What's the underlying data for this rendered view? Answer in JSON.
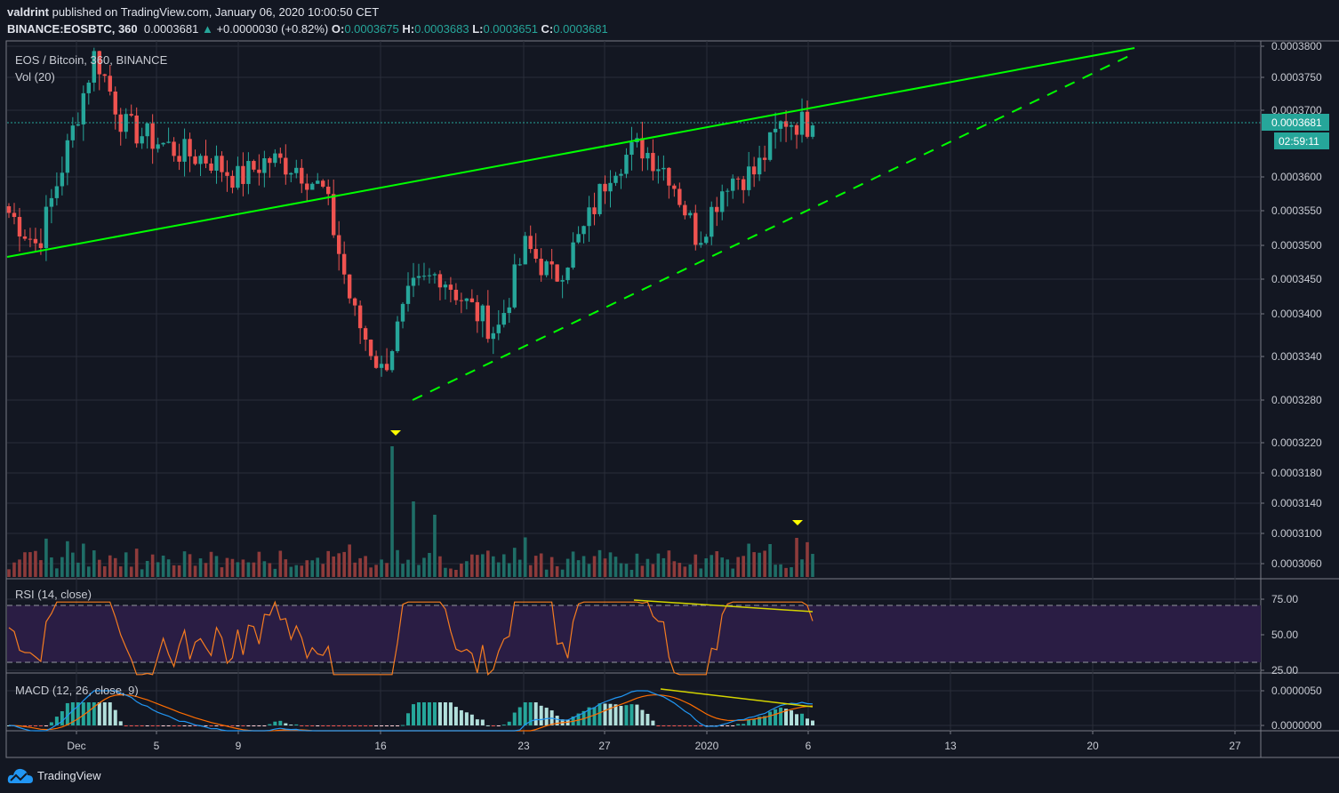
{
  "header": {
    "author": "valdrint",
    "published_text": "published on TradingView.com, January 06, 2020 10:00:50 CET",
    "symbol": "BINANCE:EOSBTC, 360",
    "last_price": "0.0003681",
    "change": "+0.0000030 (+0.82%)",
    "open_label": "O:",
    "open": "0.0003675",
    "high_label": "H:",
    "high": "0.0003683",
    "low_label": "L:",
    "low": "0.0003651",
    "close_label": "C:",
    "close": "0.0003681"
  },
  "legends": {
    "main": "EOS / Bitcoin, 360, BINANCE",
    "volume": "Vol (20)",
    "rsi": "RSI (14, close)",
    "macd": "MACD (12, 26, close, 9)"
  },
  "price_scale": {
    "current_price_badge": "0.0003681",
    "countdown_badge": "02:59:11",
    "labels": [
      "0.0003800",
      "0.0003750",
      "0.0003700",
      "0.0003600",
      "0.0003550",
      "0.0003500",
      "0.0003450",
      "0.0003400",
      "0.0003340",
      "0.0003280",
      "0.0003220",
      "0.0003180",
      "0.0003140",
      "0.0003100",
      "0.0003060"
    ]
  },
  "rsi_scale": {
    "labels": [
      "75.00",
      "50.00",
      "25.00"
    ]
  },
  "macd_scale": {
    "labels": [
      "0.0000050",
      "0.0000000"
    ]
  },
  "time_axis": {
    "labels": [
      "Dec",
      "5",
      "9",
      "16",
      "23",
      "27",
      "2020",
      "6",
      "13",
      "20",
      "27"
    ]
  },
  "footer": {
    "brand": "TradingView"
  },
  "colors": {
    "background": "#131722",
    "up": "#26a69a",
    "down": "#ef5350",
    "trendline": "#00ff00",
    "rsi_line": "#f57c20",
    "rsi_band": "#2a1d44",
    "macd_line": "#2196f3",
    "signal_line": "#ff6d00",
    "divergence_line": "#d4d400",
    "marker": "#ffff00"
  },
  "chart_data": {
    "type": "candlestick",
    "title": "EOS / Bitcoin, 360, BINANCE",
    "timeframe": "6h (360 min)",
    "x_ticks": [
      "Dec",
      "5",
      "9",
      "16",
      "23",
      "27",
      "2020",
      "6",
      "13",
      "20",
      "27"
    ],
    "y_range": [
      0.000303,
      0.000381
    ],
    "approx_close_path": [
      {
        "date": "Nov 28",
        "price": 0.000355
      },
      {
        "date": "Nov 30",
        "price": 0.00035
      },
      {
        "date": "Dec 1",
        "price": 0.000364
      },
      {
        "date": "Dec 2",
        "price": 0.000379
      },
      {
        "date": "Dec 3",
        "price": 0.000368
      },
      {
        "date": "Dec 5",
        "price": 0.000366
      },
      {
        "date": "Dec 7",
        "price": 0.000364
      },
      {
        "date": "Dec 9",
        "price": 0.000363
      },
      {
        "date": "Dec 11",
        "price": 0.00036
      },
      {
        "date": "Dec 13",
        "price": 0.000363
      },
      {
        "date": "Dec 15",
        "price": 0.000362
      },
      {
        "date": "Dec 16",
        "price": 0.000358
      },
      {
        "date": "Dec 17",
        "price": 0.00034
      },
      {
        "date": "Dec 18",
        "price": 0.000331
      },
      {
        "date": "Dec 19",
        "price": 0.000343
      },
      {
        "date": "Dec 20",
        "price": 0.000346
      },
      {
        "date": "Dec 22",
        "price": 0.000341
      },
      {
        "date": "Dec 23",
        "price": 0.000337
      },
      {
        "date": "Dec 25",
        "price": 0.00035
      },
      {
        "date": "Dec 26",
        "price": 0.000345
      },
      {
        "date": "Dec 27",
        "price": 0.000352
      },
      {
        "date": "Dec 28",
        "price": 0.000362
      },
      {
        "date": "Dec 29",
        "price": 0.000365
      },
      {
        "date": "Dec 31",
        "price": 0.000361
      },
      {
        "date": "Jan 2",
        "price": 0.000351
      },
      {
        "date": "Jan 3",
        "price": 0.00036
      },
      {
        "date": "Jan 5",
        "price": 0.000361
      },
      {
        "date": "Jan 5 18h",
        "price": 0.000369
      },
      {
        "date": "Jan 6",
        "price": 0.0003681
      }
    ],
    "trendlines": [
      {
        "name": "resistance (solid)",
        "from": {
          "date": "Nov 28",
          "price": 0.000348
        },
        "to": {
          "date": "Jan 21",
          "price": 0.00038
        }
      },
      {
        "name": "support (dashed)",
        "from": {
          "date": "Dec 17",
          "price": 0.000328
        },
        "to": {
          "date": "Jan 21",
          "price": 0.000379
        }
      }
    ],
    "volume_markers": [
      "Dec 17 spike",
      "Jan 5 spike"
    ],
    "rsi": {
      "period": 14,
      "upper": 70,
      "lower": 30,
      "range": [
        25,
        75
      ],
      "note": "bearish divergence Dec 29 -> Jan 5"
    },
    "macd": {
      "fast": 12,
      "slow": 26,
      "signal": 9,
      "range": [
        -5e-07,
        7e-06
      ],
      "note": "bearish divergence Dec 30 -> Jan 6"
    }
  }
}
